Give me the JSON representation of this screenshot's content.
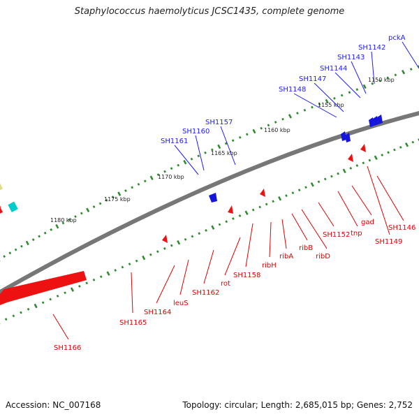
{
  "title": "Staphylococcus haemolyticus JCSC1435, complete genome",
  "footer": {
    "accession": "Accession: NC_007168",
    "summary": "Topology: circular; Length: 2,685,015 bp; Genes: 2,752"
  },
  "colors": {
    "forward_label": "#1a1aff",
    "reverse_label": "#e00000",
    "backbone": "#777777",
    "tick_dots": "#2e8b2e"
  },
  "ticks": [
    {
      "label": "1150 kbp"
    },
    {
      "label": "1155 kbp"
    },
    {
      "label": "1160 kbp"
    },
    {
      "label": "1165 kbp"
    },
    {
      "label": "1170 kbp"
    },
    {
      "label": "1175 kbp"
    },
    {
      "label": "1180 kbp"
    }
  ],
  "genes_forward": [
    "pckA",
    "SH1142",
    "SH1143",
    "SH1144",
    "SH1147",
    "SH1148",
    "SH1157",
    "SH1160",
    "SH1161"
  ],
  "genes_reverse": [
    "SH1146",
    "SH1149",
    "gad",
    "tnp",
    "SH1152",
    "ribD",
    "ribB",
    "ribA",
    "ribH",
    "SH1158",
    "rot",
    "SH1162",
    "leuS",
    "SH1164",
    "SH1165",
    "SH1166"
  ]
}
